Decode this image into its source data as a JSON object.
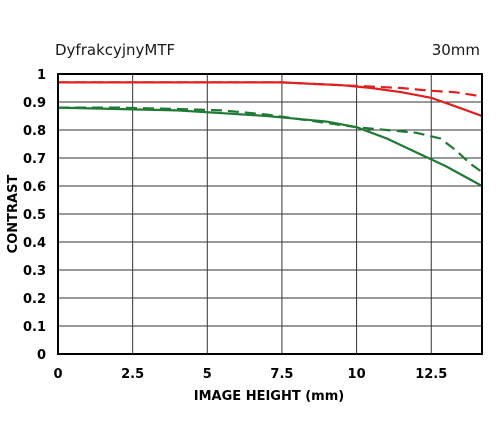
{
  "chart_data": {
    "type": "line",
    "title": "DyfrakcyjnyMTF",
    "subtitle": "30mm",
    "xlabel": "IMAGE HEIGHT (mm)",
    "ylabel": "CONTRAST",
    "xlim": [
      0,
      14.2
    ],
    "ylim": [
      0,
      1
    ],
    "x_ticks": [
      "0",
      "2.5",
      "5",
      "7.5",
      "10",
      "12.5"
    ],
    "y_ticks": [
      "0",
      "0.1",
      "0.2",
      "0.3",
      "0.4",
      "0.5",
      "0.6",
      "0.7",
      "0.8",
      "0.9",
      "1"
    ],
    "grid": true,
    "series": [
      {
        "color": "#e02020",
        "dash": false,
        "points": [
          [
            0,
            0.97
          ],
          [
            2,
            0.97
          ],
          [
            4,
            0.97
          ],
          [
            6,
            0.97
          ],
          [
            7.5,
            0.97
          ],
          [
            8.5,
            0.965
          ],
          [
            9.5,
            0.96
          ],
          [
            10.5,
            0.95
          ],
          [
            11.5,
            0.935
          ],
          [
            12.5,
            0.915
          ],
          [
            13.3,
            0.885
          ],
          [
            14.2,
            0.85
          ]
        ]
      },
      {
        "color": "#e02020",
        "dash": true,
        "points": [
          [
            0,
            0.97
          ],
          [
            2,
            0.97
          ],
          [
            4,
            0.97
          ],
          [
            6,
            0.97
          ],
          [
            7.5,
            0.97
          ],
          [
            8.5,
            0.965
          ],
          [
            9.5,
            0.96
          ],
          [
            10.5,
            0.955
          ],
          [
            11.5,
            0.95
          ],
          [
            12.5,
            0.94
          ],
          [
            13.3,
            0.935
          ],
          [
            14.2,
            0.92
          ]
        ]
      },
      {
        "color": "#1e7a34",
        "dash": false,
        "points": [
          [
            0,
            0.88
          ],
          [
            2,
            0.875
          ],
          [
            4,
            0.87
          ],
          [
            5.5,
            0.86
          ],
          [
            7,
            0.85
          ],
          [
            8,
            0.84
          ],
          [
            9,
            0.83
          ],
          [
            10,
            0.81
          ],
          [
            11,
            0.77
          ],
          [
            12,
            0.72
          ],
          [
            13,
            0.67
          ],
          [
            14.2,
            0.6
          ]
        ]
      },
      {
        "color": "#1e7a34",
        "dash": true,
        "points": [
          [
            0,
            0.88
          ],
          [
            2,
            0.88
          ],
          [
            4,
            0.875
          ],
          [
            5.5,
            0.87
          ],
          [
            7,
            0.855
          ],
          [
            8,
            0.84
          ],
          [
            9,
            0.825
          ],
          [
            10,
            0.81
          ],
          [
            11,
            0.8
          ],
          [
            12,
            0.79
          ],
          [
            12.8,
            0.77
          ],
          [
            13.3,
            0.73
          ],
          [
            13.8,
            0.68
          ],
          [
            14.2,
            0.65
          ]
        ]
      }
    ]
  }
}
